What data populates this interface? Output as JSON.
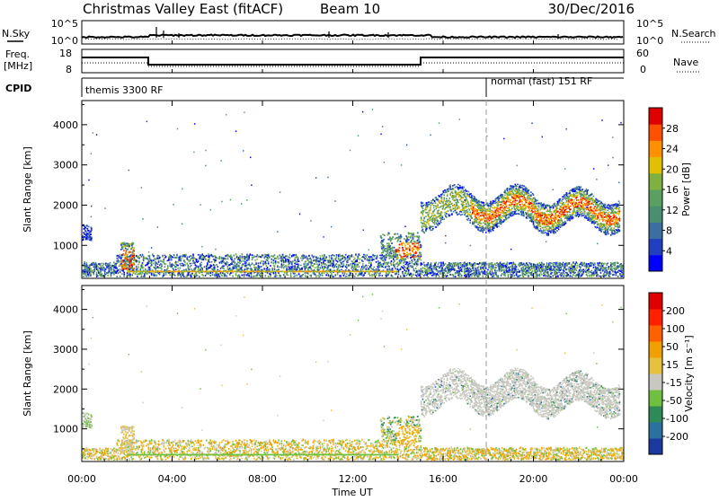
{
  "header": {
    "radar": "Christmas Valley East (fitACF)",
    "beam": "Beam 10",
    "date": "30/Dec/2016"
  },
  "strip_panels": {
    "nsky": {
      "label": "N.Sky",
      "ticks": [
        "10^5",
        "10^0"
      ],
      "right_label": "N.Search",
      "right_ticks": [
        "10^5",
        "10^0"
      ]
    },
    "freq": {
      "label_line1": "Freq.",
      "label_line2": "[MHz]",
      "ticks": [
        "18",
        "8"
      ],
      "right_label": "Nave",
      "right_ticks": [
        "60",
        "0"
      ]
    },
    "cpid": {
      "label": "CPID",
      "modes": [
        "themis 3300 RF",
        "normal (fast) 151 RF"
      ]
    }
  },
  "colors": {
    "power": [
      "#0000ff",
      "#2040c0",
      "#3a6fa0",
      "#4a9070",
      "#5aa060",
      "#80b040",
      "#e0c000",
      "#ff9000",
      "#ff5000",
      "#e00000"
    ],
    "velocity": [
      "#1a3aa0",
      "#2a70a0",
      "#2e8b57",
      "#70c040",
      "#c8c8c0",
      "#e8c040",
      "#f0a000",
      "#ff6000",
      "#ff2000",
      "#e00000"
    ]
  },
  "chart_data": [
    {
      "type": "heatmap",
      "name": "power-panel",
      "ylabel": "Slant Range [km]",
      "ylim": [
        180,
        4600
      ],
      "yticks": [
        1000,
        2000,
        3000,
        4000
      ],
      "xlim": [
        0,
        24
      ],
      "colorbar": {
        "label": "Power [dB]",
        "ticks": [
          "4",
          "8",
          "12",
          "16",
          "20",
          "24",
          "28"
        ]
      }
    },
    {
      "type": "heatmap",
      "name": "velocity-panel",
      "ylabel": "Slant Range [km]",
      "ylim": [
        180,
        4600
      ],
      "yticks": [
        1000,
        2000,
        3000,
        4000
      ],
      "xlim": [
        0,
        24
      ],
      "xticks": [
        "00:00",
        "04:00",
        "08:00",
        "12:00",
        "16:00",
        "20:00",
        "00:00"
      ],
      "xlabel": "Time UT",
      "colorbar": {
        "label": "Velocity [m s⁻¹]",
        "ticks": [
          "-200",
          "-100",
          "-50",
          "-15",
          "15",
          "50",
          "100",
          "200"
        ]
      }
    }
  ]
}
